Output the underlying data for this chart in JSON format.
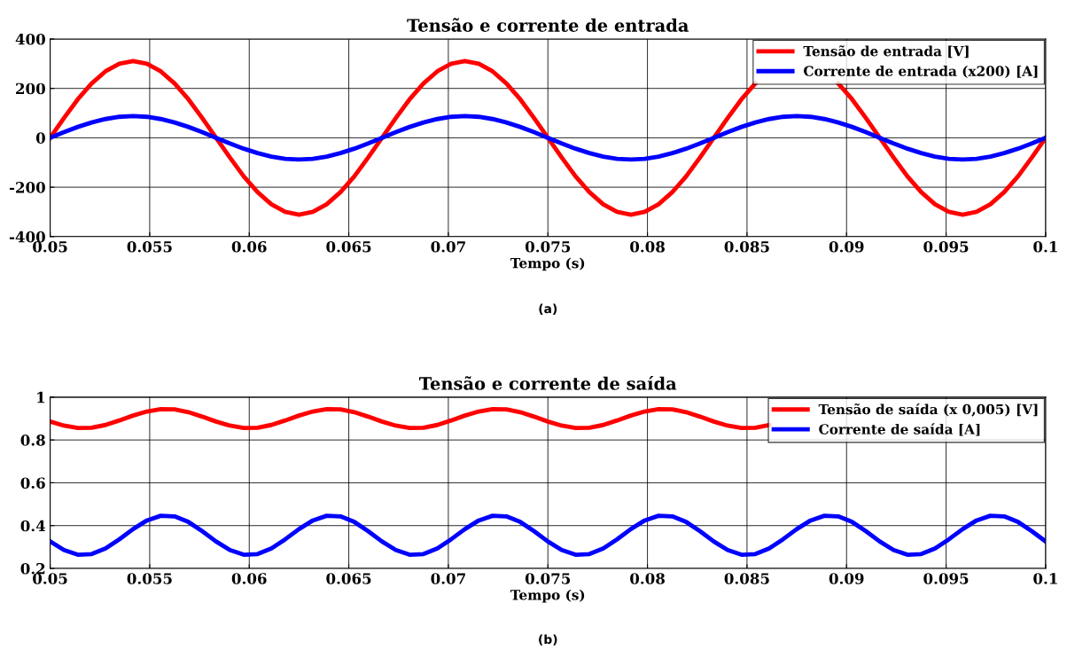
{
  "chart_data": [
    {
      "type": "line",
      "title": "Tensão e corrente de entrada",
      "xlabel": "Tempo (s)",
      "annotations": [
        "(a)"
      ],
      "x": [
        0.05,
        0.050694,
        0.051389,
        0.052083,
        0.052778,
        0.053472,
        0.054167,
        0.054861,
        0.055556,
        0.05625,
        0.056944,
        0.057639,
        0.058333,
        0.059028,
        0.059722,
        0.060417,
        0.061111,
        0.061806,
        0.0625,
        0.063194,
        0.063889,
        0.064583,
        0.065278,
        0.065972,
        0.066667,
        0.067361,
        0.068056,
        0.06875,
        0.069444,
        0.070139,
        0.070833,
        0.071528,
        0.072222,
        0.072917,
        0.073611,
        0.074306,
        0.075,
        0.075694,
        0.076389,
        0.077083,
        0.077778,
        0.078472,
        0.079167,
        0.079861,
        0.080556,
        0.08125,
        0.081944,
        0.082639,
        0.083333,
        0.084028,
        0.084722,
        0.085417,
        0.086111,
        0.086806,
        0.0875,
        0.088194,
        0.088889,
        0.089583,
        0.090278,
        0.090972,
        0.091667,
        0.092361,
        0.093056,
        0.09375,
        0.094444,
        0.095139,
        0.095833,
        0.096528,
        0.097222,
        0.097917,
        0.098611,
        0.099306,
        0.1
      ],
      "series": [
        {
          "name": "Tensão de entrada [V]",
          "color": "#ff0000",
          "values": [
            0,
            80,
            156,
            220,
            269,
            300,
            311,
            300,
            269,
            220,
            156,
            80,
            0,
            -80,
            -156,
            -220,
            -269,
            -300,
            -311,
            -300,
            -269,
            -220,
            -156,
            -80,
            0,
            80,
            156,
            220,
            269,
            300,
            311,
            300,
            269,
            220,
            156,
            80,
            0,
            -80,
            -156,
            -220,
            -269,
            -300,
            -311,
            -300,
            -269,
            -220,
            -156,
            -80,
            0,
            80,
            156,
            220,
            null,
            null,
            null,
            null,
            null,
            220,
            156,
            80,
            0,
            -80,
            -156,
            -220,
            -269,
            -300,
            -311,
            -300,
            -269,
            -220,
            -156,
            -80,
            0
          ]
        },
        {
          "name": "Corrente de entrada (x200) [A]",
          "color": "#0000ff",
          "values": [
            0,
            23,
            44,
            62,
            76,
            85,
            88,
            85,
            76,
            62,
            44,
            23,
            0,
            -23,
            -44,
            -62,
            -76,
            -85,
            -88,
            -85,
            -76,
            -62,
            -44,
            -23,
            0,
            23,
            44,
            62,
            76,
            85,
            88,
            85,
            76,
            62,
            44,
            23,
            0,
            -23,
            -44,
            -62,
            -76,
            -85,
            -88,
            -85,
            -76,
            -62,
            -44,
            -23,
            0,
            23,
            44,
            62,
            76,
            85,
            88,
            85,
            76,
            62,
            44,
            23,
            0,
            -23,
            -44,
            -62,
            -76,
            -85,
            -88,
            -85,
            -76,
            -62,
            -44,
            -23,
            0
          ]
        }
      ],
      "xlim": [
        0.05,
        0.1
      ],
      "xticks": [
        0.05,
        0.055,
        0.06,
        0.065,
        0.07,
        0.075,
        0.08,
        0.085,
        0.09,
        0.095,
        0.1
      ],
      "ylim": [
        -400,
        400
      ],
      "yticks": [
        -400,
        -200,
        0,
        200,
        400
      ],
      "grid": true,
      "legend": "top right",
      "line_style": "solid"
    },
    {
      "type": "line",
      "title": "Tensão e corrente de saída",
      "xlabel": "Tempo (s)",
      "annotations": [
        "(b)"
      ],
      "x": [
        0.05,
        0.050694,
        0.051389,
        0.052083,
        0.052778,
        0.053472,
        0.054167,
        0.054861,
        0.055556,
        0.05625,
        0.056944,
        0.057639,
        0.058333,
        0.059028,
        0.059722,
        0.060417,
        0.061111,
        0.061806,
        0.0625,
        0.063194,
        0.063889,
        0.064583,
        0.065278,
        0.065972,
        0.066667,
        0.067361,
        0.068056,
        0.06875,
        0.069444,
        0.070139,
        0.070833,
        0.071528,
        0.072222,
        0.072917,
        0.073611,
        0.074306,
        0.075,
        0.075694,
        0.076389,
        0.077083,
        0.077778,
        0.078472,
        0.079167,
        0.079861,
        0.080556,
        0.08125,
        0.081944,
        0.082639,
        0.083333,
        0.084028,
        0.084722,
        0.085417,
        0.086111,
        0.086806,
        0.0875,
        0.088194,
        0.088889,
        0.089583,
        0.090278,
        0.090972,
        0.091667,
        0.092361,
        0.093056,
        0.09375,
        0.094444,
        0.095139,
        0.095833,
        0.096528,
        0.097222,
        0.097917,
        0.098611,
        0.099306,
        0.1
      ],
      "series": [
        {
          "name": "Tensão de saída (x 0,005) [V]",
          "color": "#ff0000",
          "values": [
            0.886,
            0.867,
            0.856,
            0.857,
            0.87,
            0.891,
            0.914,
            0.933,
            0.944,
            0.943,
            0.93,
            0.909,
            0.886,
            0.867,
            0.856,
            0.857,
            0.87,
            0.891,
            0.914,
            0.933,
            0.944,
            0.943,
            0.93,
            0.909,
            0.886,
            0.867,
            0.856,
            0.857,
            0.87,
            0.891,
            0.914,
            0.933,
            0.944,
            0.943,
            0.93,
            0.909,
            0.886,
            0.867,
            0.856,
            0.857,
            0.87,
            0.891,
            0.914,
            0.933,
            0.944,
            0.943,
            0.93,
            0.909,
            0.886,
            0.867,
            0.856,
            0.857,
            0.87,
            null,
            null,
            null,
            null,
            null,
            null,
            null,
            null,
            null,
            null,
            null,
            null,
            null,
            null,
            null,
            null,
            null,
            null,
            null,
            null
          ]
        },
        {
          "name": "Corrente de saída [A]",
          "color": "#0000ff",
          "values": [
            0.326,
            0.286,
            0.264,
            0.267,
            0.293,
            0.336,
            0.384,
            0.424,
            0.446,
            0.443,
            0.417,
            0.374,
            0.326,
            0.286,
            0.264,
            0.267,
            0.293,
            0.336,
            0.384,
            0.424,
            0.446,
            0.443,
            0.417,
            0.374,
            0.326,
            0.286,
            0.264,
            0.267,
            0.293,
            0.336,
            0.384,
            0.424,
            0.446,
            0.443,
            0.417,
            0.374,
            0.326,
            0.286,
            0.264,
            0.267,
            0.293,
            0.336,
            0.384,
            0.424,
            0.446,
            0.443,
            0.417,
            0.374,
            0.326,
            0.286,
            0.264,
            0.267,
            0.293,
            0.336,
            0.384,
            0.424,
            0.446,
            0.443,
            0.417,
            0.374,
            0.326,
            0.286,
            0.264,
            0.267,
            0.293,
            0.336,
            0.384,
            0.424,
            0.446,
            0.443,
            0.417,
            0.374,
            0.326
          ]
        }
      ],
      "xlim": [
        0.05,
        0.1
      ],
      "xticks": [
        0.05,
        0.055,
        0.06,
        0.065,
        0.07,
        0.075,
        0.08,
        0.085,
        0.09,
        0.095,
        0.1
      ],
      "ylim": [
        0.2,
        1
      ],
      "yticks": [
        0.2,
        0.4,
        0.6,
        0.8,
        1
      ],
      "grid": true,
      "legend": "top right",
      "line_style": "solid"
    }
  ]
}
